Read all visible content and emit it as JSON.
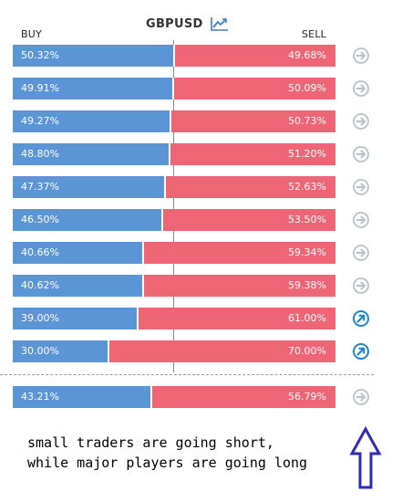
{
  "header": {
    "buy_label": "BUY",
    "sell_label": "SELL",
    "title": "GBPUSD",
    "chart_icon": "trending-up-icon"
  },
  "rows": [
    {
      "buy": "50.32%",
      "sell": "49.68%",
      "buy_fraction": 0.5032,
      "icon": "arrow-right-circle-icon",
      "icon_state": "neutral"
    },
    {
      "buy": "49.91%",
      "sell": "50.09%",
      "buy_fraction": 0.4991,
      "icon": "arrow-right-circle-icon",
      "icon_state": "neutral"
    },
    {
      "buy": "49.27%",
      "sell": "50.73%",
      "buy_fraction": 0.4927,
      "icon": "arrow-right-circle-icon",
      "icon_state": "neutral"
    },
    {
      "buy": "48.80%",
      "sell": "51.20%",
      "buy_fraction": 0.488,
      "icon": "arrow-right-circle-icon",
      "icon_state": "neutral"
    },
    {
      "buy": "47.37%",
      "sell": "52.63%",
      "buy_fraction": 0.4737,
      "icon": "arrow-right-circle-icon",
      "icon_state": "neutral"
    },
    {
      "buy": "46.50%",
      "sell": "53.50%",
      "buy_fraction": 0.465,
      "icon": "arrow-right-circle-icon",
      "icon_state": "neutral"
    },
    {
      "buy": "40.66%",
      "sell": "59.34%",
      "buy_fraction": 0.4066,
      "icon": "arrow-right-circle-icon",
      "icon_state": "neutral"
    },
    {
      "buy": "40.62%",
      "sell": "59.38%",
      "buy_fraction": 0.4062,
      "icon": "arrow-right-circle-icon",
      "icon_state": "neutral"
    },
    {
      "buy": "39.00%",
      "sell": "61.00%",
      "buy_fraction": 0.39,
      "icon": "arrow-up-right-circle-icon",
      "icon_state": "active"
    },
    {
      "buy": "30.00%",
      "sell": "70.00%",
      "buy_fraction": 0.3,
      "icon": "arrow-up-right-circle-icon",
      "icon_state": "active"
    }
  ],
  "summary": {
    "buy": "43.21%",
    "sell": "56.79%",
    "buy_fraction": 0.4321,
    "icon": "arrow-right-circle-icon",
    "icon_state": "neutral"
  },
  "annotation": {
    "line1": "small traders are going short,",
    "line2": "while major players are going long",
    "arrow_icon": "outline-up-arrow-icon"
  },
  "colors": {
    "buy": "#5b95d6",
    "sell": "#ee6676",
    "icon_neutral": "#b9c2cc",
    "icon_active": "#1f86c8",
    "annotation_arrow": "#2e2bb8"
  }
}
